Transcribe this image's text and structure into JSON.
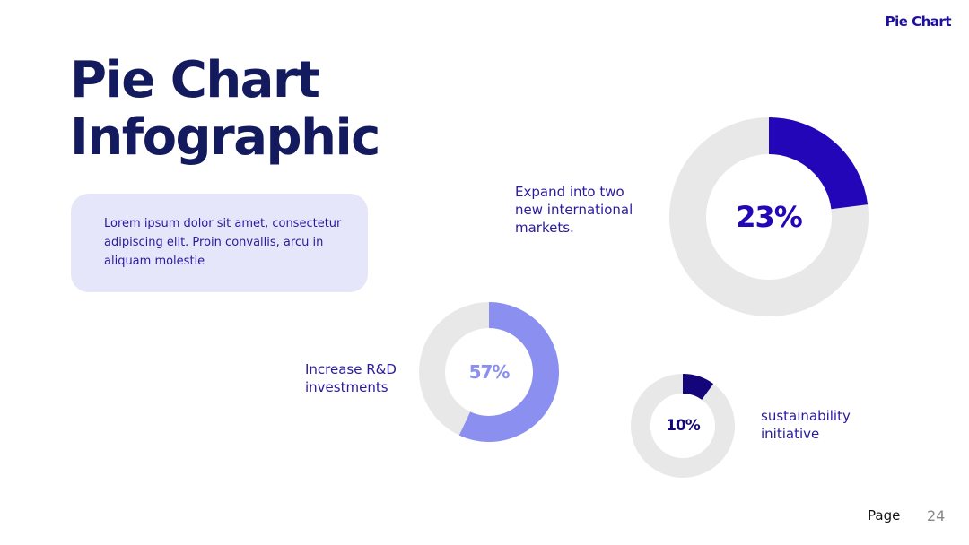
{
  "header": {
    "brand": "Pie Chart"
  },
  "title": {
    "line1": "Pie Chart",
    "line2": "Infographic"
  },
  "description": "Lorem ipsum dolor sit amet, consectetur adipiscing elit. Proin convallis, arcu in aliquam molestie",
  "chart_data": [
    {
      "type": "donut",
      "values": [
        23
      ],
      "value_labels": [
        "23%"
      ],
      "color": "#2306b8",
      "annotation": "Expand into two new international markets."
    },
    {
      "type": "donut",
      "values": [
        57
      ],
      "value_labels": [
        "57%"
      ],
      "color": "#8a8ff0",
      "annotation": "Increase R&D investments"
    },
    {
      "type": "donut",
      "values": [
        10
      ],
      "value_labels": [
        "10%"
      ],
      "color": "#14067a",
      "annotation": "sustainability initiative"
    }
  ],
  "footer": {
    "label": "Page",
    "number": 24
  }
}
